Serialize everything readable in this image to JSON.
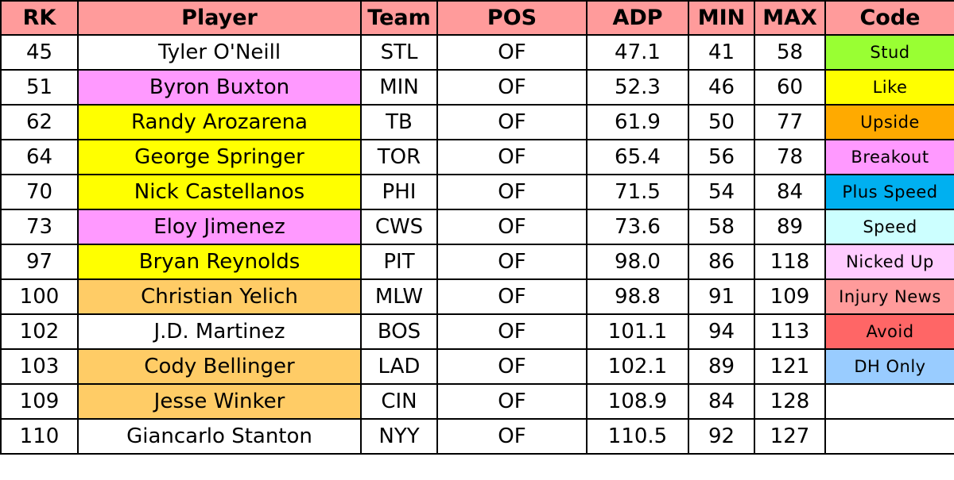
{
  "headers": {
    "rk": "RK",
    "player": "Player",
    "team": "Team",
    "pos": "POS",
    "adp": "ADP",
    "min": "MIN",
    "max": "MAX",
    "code": "Code"
  },
  "rows": [
    {
      "rk": "45",
      "player": "Tyler O'Neill",
      "team": "STL",
      "pos": "OF",
      "adp": "47.1",
      "min": "41",
      "max": "58",
      "player_color": "#ffffff"
    },
    {
      "rk": "51",
      "player": "Byron Buxton",
      "team": "MIN",
      "pos": "OF",
      "adp": "52.3",
      "min": "46",
      "max": "60",
      "player_color": "#ff99ff"
    },
    {
      "rk": "62",
      "player": "Randy Arozarena",
      "team": "TB",
      "pos": "OF",
      "adp": "61.9",
      "min": "50",
      "max": "77",
      "player_color": "#ffff00"
    },
    {
      "rk": "64",
      "player": "George Springer",
      "team": "TOR",
      "pos": "OF",
      "adp": "65.4",
      "min": "56",
      "max": "78",
      "player_color": "#ffff00"
    },
    {
      "rk": "70",
      "player": "Nick Castellanos",
      "team": "PHI",
      "pos": "OF",
      "adp": "71.5",
      "min": "54",
      "max": "84",
      "player_color": "#ffff00"
    },
    {
      "rk": "73",
      "player": "Eloy Jimenez",
      "team": "CWS",
      "pos": "OF",
      "adp": "73.6",
      "min": "58",
      "max": "89",
      "player_color": "#ff99ff"
    },
    {
      "rk": "97",
      "player": "Bryan Reynolds",
      "team": "PIT",
      "pos": "OF",
      "adp": "98.0",
      "min": "86",
      "max": "118",
      "player_color": "#ffff00"
    },
    {
      "rk": "100",
      "player": "Christian Yelich",
      "team": "MLW",
      "pos": "OF",
      "adp": "98.8",
      "min": "91",
      "max": "109",
      "player_color": "#ffcc66"
    },
    {
      "rk": "102",
      "player": "J.D. Martinez",
      "team": "BOS",
      "pos": "OF",
      "adp": "101.1",
      "min": "94",
      "max": "113",
      "player_color": "#ffffff"
    },
    {
      "rk": "103",
      "player": "Cody Bellinger",
      "team": "LAD",
      "pos": "OF",
      "adp": "102.1",
      "min": "89",
      "max": "121",
      "player_color": "#ffcc66"
    },
    {
      "rk": "109",
      "player": "Jesse Winker",
      "team": "CIN",
      "pos": "OF",
      "adp": "108.9",
      "min": "84",
      "max": "128",
      "player_color": "#ffcc66"
    },
    {
      "rk": "110",
      "player": "Giancarlo Stanton",
      "team": "NYY",
      "pos": "OF",
      "adp": "110.5",
      "min": "92",
      "max": "127",
      "player_color": "#ffffff"
    }
  ],
  "codes": [
    {
      "label": "Stud",
      "color": "#99ff33"
    },
    {
      "label": "Like",
      "color": "#ffff00"
    },
    {
      "label": "Upside",
      "color": "#ffaa00"
    },
    {
      "label": "Breakout",
      "color": "#ff99ff"
    },
    {
      "label": "Plus Speed",
      "color": "#00b0f0"
    },
    {
      "label": "Speed",
      "color": "#ccffff"
    },
    {
      "label": "Nicked Up",
      "color": "#ffccff"
    },
    {
      "label": "Injury News",
      "color": "#ff9b9b"
    },
    {
      "label": "Avoid",
      "color": "#ff6666"
    },
    {
      "label": "DH Only",
      "color": "#99ccff"
    },
    {
      "label": "",
      "color": "#ffffff"
    },
    {
      "label": "",
      "color": "#ffffff"
    }
  ]
}
